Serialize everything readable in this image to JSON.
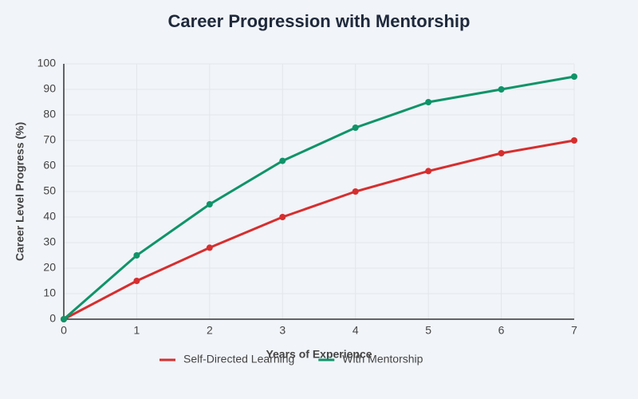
{
  "chart_data": {
    "type": "line",
    "title": "Career Progression with Mentorship",
    "x_label": "Years of Experience",
    "y_label": "Career Level Progress (%)",
    "x": [
      0,
      1,
      2,
      3,
      4,
      5,
      6,
      7
    ],
    "series": [
      {
        "name": "Self-Directed Learning",
        "color": "#d62e2e",
        "values": [
          0,
          15,
          28,
          40,
          50,
          58,
          65,
          70
        ]
      },
      {
        "name": "With Mentorship",
        "color": "#0e9468",
        "values": [
          0,
          25,
          45,
          62,
          75,
          85,
          90,
          95
        ]
      }
    ],
    "xlim": [
      0,
      7
    ],
    "xticks": [
      0,
      1,
      2,
      3,
      4,
      5,
      6,
      7
    ],
    "ylim": [
      0,
      100
    ],
    "yticks": [
      0,
      10,
      20,
      30,
      40,
      50,
      60,
      70,
      80,
      90,
      100
    ],
    "grid": true
  }
}
